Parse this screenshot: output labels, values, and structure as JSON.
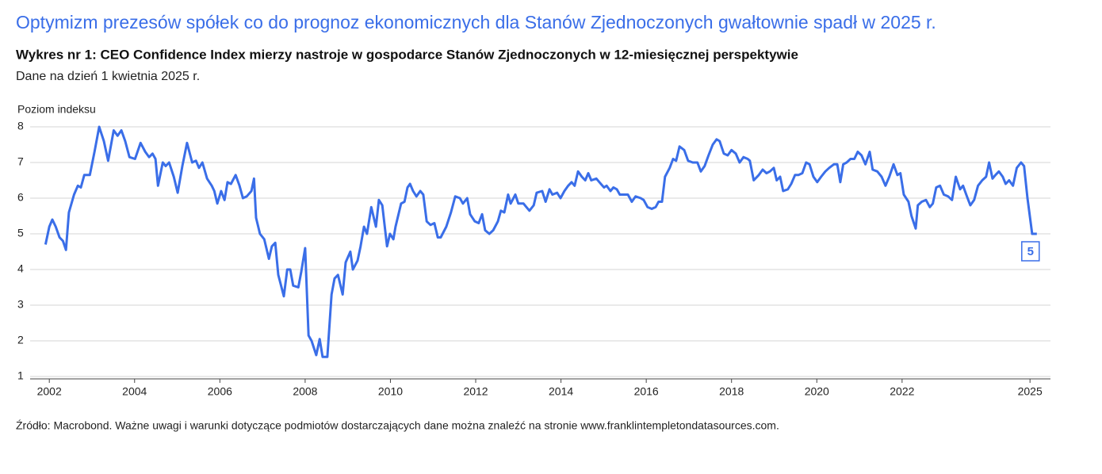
{
  "chart_data": {
    "type": "line",
    "title": "Optymizm prezesów spółek co do prognoz ekonomicznych dla Stanów Zjednoczonych gwałtownie spadł w 2025 r.",
    "subtitle": "Wykres nr 1: CEO Confidence Index mierzy nastroje w gospodarce Stanów Zjednoczonych w 12-miesięcznej perspektywie",
    "note": "Dane na dzień 1 kwietnia 2025 r.",
    "y_label": "Poziom indeksu",
    "source": "Źródło: Macrobond. Ważne uwagi i warunki dotyczące podmiotów dostarczających dane można znaleźć na stronie www.franklintempletondatasources.com.",
    "color": "#3a6ee8",
    "grid": true,
    "xlim": [
      2001.55,
      2025.48
    ],
    "xticks": [
      2002,
      2004,
      2006,
      2008,
      2010,
      2012,
      2014,
      2016,
      2018,
      2020,
      2022,
      2025
    ],
    "ylim": [
      1,
      8
    ],
    "yticks": [
      1,
      2,
      3,
      4,
      5,
      6,
      7,
      8
    ],
    "x": [
      2001.91,
      2002.0,
      2002.07,
      2002.15,
      2002.24,
      2002.32,
      2002.39,
      2002.46,
      2002.58,
      2002.67,
      2002.74,
      2002.82,
      2002.95,
      2003.06,
      2003.17,
      2003.28,
      2003.38,
      2003.51,
      2003.6,
      2003.69,
      2003.78,
      2003.88,
      2004.01,
      2004.04,
      2004.14,
      2004.25,
      2004.34,
      2004.42,
      2004.49,
      2004.55,
      2004.66,
      2004.73,
      2004.81,
      2004.92,
      2005.01,
      2005.12,
      2005.23,
      2005.35,
      2005.44,
      2005.51,
      2005.59,
      2005.7,
      2005.81,
      2005.87,
      2005.94,
      2006.03,
      2006.11,
      2006.18,
      2006.26,
      2006.37,
      2006.46,
      2006.54,
      2006.63,
      2006.74,
      2006.8,
      2006.85,
      2006.94,
      2007.04,
      2007.15,
      2007.22,
      2007.3,
      2007.37,
      2007.5,
      2007.58,
      2007.65,
      2007.72,
      2007.84,
      2007.91,
      2008.0,
      2008.08,
      2008.15,
      2008.26,
      2008.34,
      2008.41,
      2008.52,
      2008.62,
      2008.69,
      2008.77,
      2008.88,
      2008.95,
      2009.06,
      2009.12,
      2009.23,
      2009.3,
      2009.38,
      2009.45,
      2009.55,
      2009.66,
      2009.73,
      2009.81,
      2009.92,
      2009.99,
      2010.07,
      2010.12,
      2010.25,
      2010.33,
      2010.4,
      2010.46,
      2010.53,
      2010.61,
      2010.7,
      2010.77,
      2010.85,
      2010.94,
      2011.03,
      2011.11,
      2011.18,
      2011.31,
      2011.42,
      2011.52,
      2011.63,
      2011.7,
      2011.8,
      2011.87,
      2011.98,
      2012.07,
      2012.15,
      2012.22,
      2012.32,
      2012.41,
      2012.52,
      2012.59,
      2012.67,
      2012.76,
      2012.82,
      2012.93,
      2013.0,
      2013.12,
      2013.19,
      2013.26,
      2013.36,
      2013.43,
      2013.56,
      2013.64,
      2013.73,
      2013.8,
      2013.91,
      2013.99,
      2014.08,
      2014.17,
      2014.25,
      2014.32,
      2014.4,
      2014.49,
      2014.57,
      2014.64,
      2014.71,
      2014.83,
      2014.9,
      2015.01,
      2015.07,
      2015.16,
      2015.23,
      2015.31,
      2015.38,
      2015.48,
      2015.57,
      2015.66,
      2015.75,
      2015.87,
      2015.94,
      2016.03,
      2016.13,
      2016.22,
      2016.29,
      2016.37,
      2016.44,
      2016.55,
      2016.63,
      2016.7,
      2016.78,
      2016.89,
      2016.98,
      2017.09,
      2017.2,
      2017.28,
      2017.37,
      2017.46,
      2017.56,
      2017.65,
      2017.72,
      2017.82,
      2017.91,
      2018.0,
      2018.1,
      2018.19,
      2018.28,
      2018.38,
      2018.43,
      2018.52,
      2018.64,
      2018.73,
      2018.82,
      2018.9,
      2018.99,
      2019.06,
      2019.14,
      2019.21,
      2019.32,
      2019.4,
      2019.49,
      2019.57,
      2019.66,
      2019.75,
      2019.83,
      2019.92,
      2020.01,
      2020.1,
      2020.2,
      2020.29,
      2020.4,
      2020.48,
      2020.55,
      2020.62,
      2020.7,
      2020.79,
      2020.88,
      2020.96,
      2021.05,
      2021.14,
      2021.24,
      2021.31,
      2021.42,
      2021.52,
      2021.61,
      2021.7,
      2021.8,
      2021.89,
      2021.96,
      2022.04,
      2022.15,
      2022.22,
      2022.32,
      2022.37,
      2022.46,
      2022.56,
      2022.65,
      2022.72,
      2022.8,
      2022.89,
      2022.98,
      2023.08,
      2023.17,
      2023.26,
      2023.36,
      2023.43,
      2023.52,
      2023.6,
      2023.69,
      2023.78,
      2023.88,
      2023.97,
      2024.04,
      2024.12,
      2024.19,
      2024.27,
      2024.36,
      2024.43,
      2024.51,
      2024.6,
      2024.69,
      2024.79,
      2024.86,
      2024.94,
      2025.05,
      2025.16
    ],
    "values": [
      4.7,
      5.2,
      5.4,
      5.2,
      4.9,
      4.8,
      4.55,
      5.6,
      6.1,
      6.35,
      6.3,
      6.65,
      6.65,
      7.3,
      8.0,
      7.6,
      7.05,
      7.9,
      7.75,
      7.9,
      7.6,
      7.15,
      7.1,
      7.2,
      7.55,
      7.3,
      7.15,
      7.25,
      7.1,
      6.35,
      7.0,
      6.9,
      7.0,
      6.6,
      6.15,
      6.9,
      7.55,
      7.0,
      7.05,
      6.85,
      7.0,
      6.55,
      6.35,
      6.2,
      5.85,
      6.2,
      5.95,
      6.45,
      6.4,
      6.65,
      6.35,
      6.0,
      6.05,
      6.2,
      6.55,
      5.45,
      5.0,
      4.85,
      4.3,
      4.65,
      4.75,
      3.85,
      3.25,
      4.0,
      4.0,
      3.55,
      3.5,
      3.95,
      4.6,
      2.15,
      2.0,
      1.6,
      2.05,
      1.55,
      1.55,
      3.3,
      3.75,
      3.85,
      3.3,
      4.2,
      4.5,
      4.0,
      4.25,
      4.65,
      5.2,
      5.0,
      5.75,
      5.2,
      5.95,
      5.8,
      4.65,
      5.0,
      4.85,
      5.2,
      5.85,
      5.9,
      6.3,
      6.4,
      6.2,
      6.05,
      6.2,
      6.1,
      5.35,
      5.25,
      5.3,
      4.9,
      4.9,
      5.2,
      5.6,
      6.05,
      6.0,
      5.85,
      6.0,
      5.55,
      5.35,
      5.3,
      5.55,
      5.1,
      5.0,
      5.1,
      5.35,
      5.65,
      5.6,
      6.1,
      5.85,
      6.1,
      5.85,
      5.85,
      5.75,
      5.65,
      5.8,
      6.15,
      6.2,
      5.9,
      6.25,
      6.1,
      6.15,
      6.0,
      6.2,
      6.35,
      6.45,
      6.35,
      6.75,
      6.6,
      6.5,
      6.7,
      6.5,
      6.55,
      6.45,
      6.3,
      6.35,
      6.2,
      6.3,
      6.25,
      6.1,
      6.1,
      6.1,
      5.9,
      6.05,
      6.0,
      5.95,
      5.75,
      5.7,
      5.75,
      5.9,
      5.9,
      6.6,
      6.85,
      7.1,
      7.05,
      7.45,
      7.35,
      7.05,
      7.0,
      7.0,
      6.75,
      6.9,
      7.2,
      7.5,
      7.65,
      7.6,
      7.25,
      7.2,
      7.35,
      7.25,
      7.0,
      7.15,
      7.1,
      7.05,
      6.5,
      6.65,
      6.8,
      6.7,
      6.75,
      6.85,
      6.5,
      6.6,
      6.2,
      6.25,
      6.4,
      6.65,
      6.65,
      6.7,
      7.0,
      6.95,
      6.6,
      6.45,
      6.6,
      6.75,
      6.85,
      6.95,
      6.95,
      6.45,
      6.95,
      7.0,
      7.1,
      7.1,
      7.3,
      7.2,
      6.95,
      7.3,
      6.8,
      6.75,
      6.6,
      6.35,
      6.6,
      6.95,
      6.65,
      6.7,
      6.1,
      5.9,
      5.5,
      5.15,
      5.8,
      5.9,
      5.95,
      5.75,
      5.85,
      6.3,
      6.35,
      6.1,
      6.05,
      5.95,
      6.6,
      6.25,
      6.35,
      6.05,
      5.8,
      5.95,
      6.35,
      6.5,
      6.6,
      7.0,
      6.55,
      6.65,
      6.75,
      6.6,
      6.4,
      6.5,
      6.35,
      6.85,
      7.0,
      6.9,
      6.0,
      5.0,
      5.0
    ]
  }
}
